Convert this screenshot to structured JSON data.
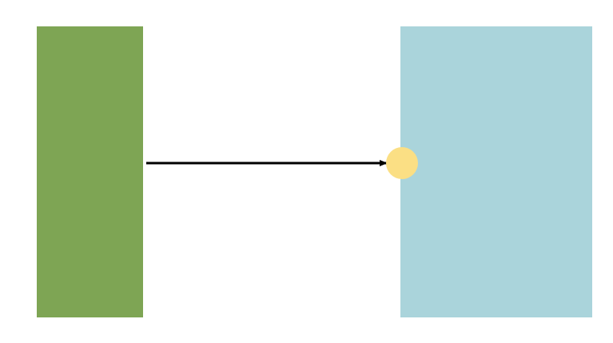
{
  "diagram": {
    "source_block": {
      "color": "#7ea554"
    },
    "target_block": {
      "color": "#aad4db"
    },
    "connector": {
      "color": "#000000",
      "direction": "left-to-right"
    },
    "port": {
      "color": "#fbdf84"
    }
  }
}
